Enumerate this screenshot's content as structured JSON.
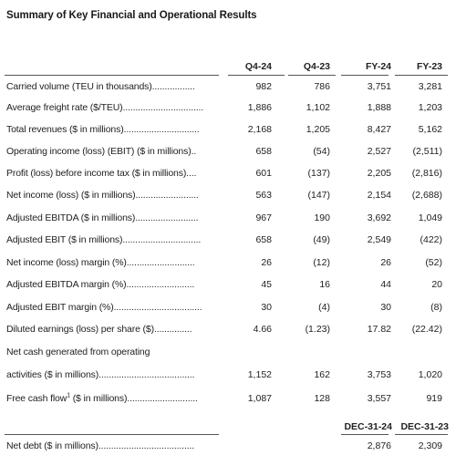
{
  "title": "Summary of Key Financial and Operational Results",
  "columns": [
    "Q4-24",
    "Q4-23",
    "FY-24",
    "FY-23"
  ],
  "rows": [
    {
      "label": "Carried volume (TEU in thousands).................",
      "values": [
        "982",
        "786",
        "3,751",
        "3,281"
      ]
    },
    {
      "label": "Average freight rate ($/TEU)................................",
      "values": [
        "1,886",
        "1,102",
        "1,888",
        "1,203"
      ]
    },
    {
      "label": "Total revenues ($ in millions)..............................",
      "values": [
        "2,168",
        "1,205",
        "8,427",
        "5,162"
      ]
    },
    {
      "label": "Operating income (loss) (EBIT) ($ in millions)..",
      "values": [
        "658",
        "(54)",
        "2,527",
        "(2,511)"
      ]
    },
    {
      "label": "Profit (loss) before income tax ($ in millions)....",
      "values": [
        "601",
        "(137)",
        "2,205",
        "(2,816)"
      ]
    },
    {
      "label": "Net income (loss) ($ in millions).........................",
      "values": [
        "563",
        "(147)",
        "2,154",
        "(2,688)"
      ]
    },
    {
      "label": "Adjusted EBITDA ($ in millions).........................",
      "values": [
        "967",
        "190",
        "3,692",
        "1,049"
      ]
    },
    {
      "label": "Adjusted EBIT ($ in millions)...............................",
      "values": [
        "658",
        "(49)",
        "2,549",
        "(422)"
      ]
    },
    {
      "label": "Net income (loss) margin (%)...........................",
      "values": [
        "26",
        "(12)",
        "26",
        "(52)"
      ]
    },
    {
      "label": "Adjusted EBITDA margin (%)...........................",
      "values": [
        "45",
        "16",
        "44",
        "20"
      ]
    },
    {
      "label": "Adjusted EBIT margin (%)...................................",
      "values": [
        "30",
        "(4)",
        "30",
        "(8)"
      ]
    },
    {
      "label": "Diluted earnings (loss) per share ($)...............",
      "values": [
        "4.66",
        "(1.23)",
        "17.82",
        "(22.42)"
      ]
    },
    {
      "label": "Net cash generated from operating",
      "values": [
        "",
        "",
        "",
        ""
      ]
    },
    {
      "label": "activities ($ in millions)......................................",
      "values": [
        "1,152",
        "162",
        "3,753",
        "1,020"
      ]
    },
    {
      "label": "Free cash flow",
      "label_sup": "1",
      "label_tail": " ($ in millions)............................",
      "values": [
        "1,087",
        "128",
        "3,557",
        "919"
      ]
    }
  ],
  "date_headers": [
    "DEC-31-24",
    "DEC-31-23"
  ],
  "net_debt": {
    "label": "Net debt ($ in millions)......................................",
    "values": [
      "2,876",
      "2,309"
    ]
  }
}
